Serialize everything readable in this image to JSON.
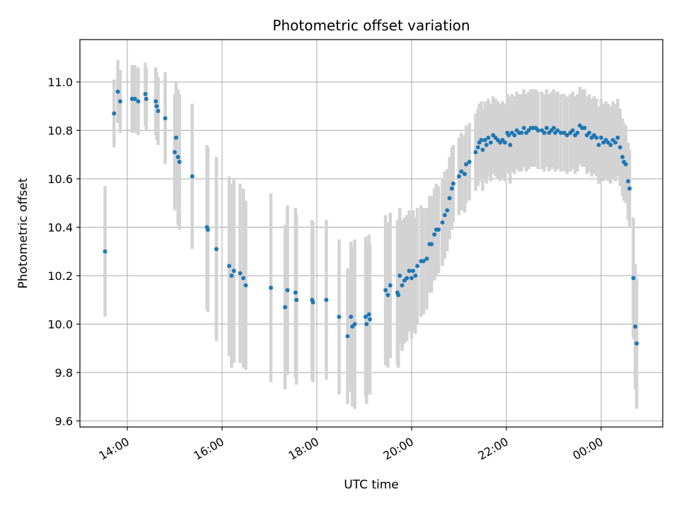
{
  "chart_data": {
    "type": "scatter",
    "title": "Photometric offset variation",
    "xlabel": "UTC time",
    "ylabel": "Photometric offset",
    "x_tick_labels": [
      "14:00",
      "16:00",
      "18:00",
      "20:00",
      "22:00",
      "00:00"
    ],
    "x_tick_hours": [
      14,
      16,
      18,
      20,
      22,
      24
    ],
    "xlim_hours": [
      13.0,
      25.3
    ],
    "ylim": [
      9.575,
      11.175
    ],
    "y_ticks": [
      9.6,
      9.8,
      10.0,
      10.2,
      10.4,
      10.6,
      10.8,
      11.0
    ],
    "y_tick_labels": [
      "9.6",
      "9.8",
      "10.0",
      "10.2",
      "10.4",
      "10.6",
      "10.8",
      "11.0"
    ],
    "grid": true,
    "colors": {
      "points": "#1f77b4",
      "error_bars": "#d3d3d3",
      "grid": "#b0b0b0"
    },
    "series": [
      {
        "points": [
          [
            13.53,
            10.3,
            0.27
          ],
          [
            13.72,
            10.87,
            0.14
          ],
          [
            13.8,
            10.96,
            0.13
          ],
          [
            13.85,
            10.92,
            0.13
          ],
          [
            14.1,
            10.93,
            0.14
          ],
          [
            14.16,
            10.93,
            0.14
          ],
          [
            14.23,
            10.92,
            0.14
          ],
          [
            14.38,
            10.95,
            0.13
          ],
          [
            14.4,
            10.93,
            0.13
          ],
          [
            14.6,
            10.92,
            0.14
          ],
          [
            14.62,
            10.9,
            0.14
          ],
          [
            14.65,
            10.88,
            0.14
          ],
          [
            14.8,
            10.85,
            0.19
          ],
          [
            15.0,
            10.71,
            0.24
          ],
          [
            15.03,
            10.77,
            0.23
          ],
          [
            15.07,
            10.69,
            0.28
          ],
          [
            15.1,
            10.67,
            0.28
          ],
          [
            15.37,
            10.61,
            0.3
          ],
          [
            15.68,
            10.4,
            0.34
          ],
          [
            15.7,
            10.39,
            0.34
          ],
          [
            15.88,
            10.31,
            0.38
          ],
          [
            16.15,
            10.24,
            0.37
          ],
          [
            16.2,
            10.2,
            0.38
          ],
          [
            16.25,
            10.22,
            0.38
          ],
          [
            16.38,
            10.21,
            0.37
          ],
          [
            16.45,
            10.19,
            0.37
          ],
          [
            16.5,
            10.16,
            0.35
          ],
          [
            17.03,
            10.15,
            0.39
          ],
          [
            17.33,
            10.07,
            0.34
          ],
          [
            17.38,
            10.14,
            0.35
          ],
          [
            17.55,
            10.13,
            0.35
          ],
          [
            17.57,
            10.1,
            0.35
          ],
          [
            17.9,
            10.1,
            0.33
          ],
          [
            17.92,
            10.09,
            0.33
          ],
          [
            18.2,
            10.1,
            0.33
          ],
          [
            18.47,
            10.03,
            0.32
          ],
          [
            18.65,
            9.95,
            0.28
          ],
          [
            18.72,
            10.03,
            0.31
          ],
          [
            18.75,
            9.99,
            0.33
          ],
          [
            18.8,
            10.0,
            0.35
          ],
          [
            19.03,
            10.03,
            0.33
          ],
          [
            19.05,
            10.0,
            0.33
          ],
          [
            19.1,
            10.04,
            0.33
          ],
          [
            19.12,
            10.02,
            0.31
          ],
          [
            19.45,
            10.14,
            0.31
          ],
          [
            19.5,
            10.12,
            0.3
          ],
          [
            19.55,
            10.16,
            0.3
          ],
          [
            19.7,
            10.13,
            0.3
          ],
          [
            19.72,
            10.12,
            0.3
          ],
          [
            19.75,
            10.2,
            0.28
          ],
          [
            19.8,
            10.16,
            0.27
          ],
          [
            19.85,
            10.18,
            0.26
          ],
          [
            19.9,
            10.19,
            0.26
          ],
          [
            19.95,
            10.22,
            0.25
          ],
          [
            20.0,
            10.19,
            0.25
          ],
          [
            20.03,
            10.22,
            0.25
          ],
          [
            20.08,
            10.2,
            0.24
          ],
          [
            20.12,
            10.24,
            0.24
          ],
          [
            20.2,
            10.26,
            0.23
          ],
          [
            20.25,
            10.26,
            0.22
          ],
          [
            20.32,
            10.27,
            0.21
          ],
          [
            20.38,
            10.33,
            0.2
          ],
          [
            20.42,
            10.33,
            0.2
          ],
          [
            20.48,
            10.37,
            0.19
          ],
          [
            20.52,
            10.39,
            0.19
          ],
          [
            20.57,
            10.39,
            0.18
          ],
          [
            20.65,
            10.42,
            0.18
          ],
          [
            20.7,
            10.45,
            0.18
          ],
          [
            20.75,
            10.47,
            0.17
          ],
          [
            20.8,
            10.52,
            0.17
          ],
          [
            20.85,
            10.56,
            0.17
          ],
          [
            20.88,
            10.58,
            0.16
          ],
          [
            21.0,
            10.61,
            0.16
          ],
          [
            21.05,
            10.63,
            0.16
          ],
          [
            21.12,
            10.62,
            0.16
          ],
          [
            21.15,
            10.66,
            0.16
          ],
          [
            21.22,
            10.67,
            0.16
          ],
          [
            21.35,
            10.71,
            0.16
          ],
          [
            21.4,
            10.73,
            0.16
          ],
          [
            21.43,
            10.75,
            0.16
          ],
          [
            21.47,
            10.76,
            0.16
          ],
          [
            21.5,
            10.72,
            0.17
          ],
          [
            21.55,
            10.76,
            0.16
          ],
          [
            21.58,
            10.74,
            0.16
          ],
          [
            21.62,
            10.77,
            0.16
          ],
          [
            21.67,
            10.75,
            0.16
          ],
          [
            21.72,
            10.78,
            0.16
          ],
          [
            21.77,
            10.77,
            0.16
          ],
          [
            21.82,
            10.76,
            0.16
          ],
          [
            21.87,
            10.75,
            0.16
          ],
          [
            21.92,
            10.76,
            0.16
          ],
          [
            21.97,
            10.75,
            0.16
          ],
          [
            22.02,
            10.79,
            0.16
          ],
          [
            22.05,
            10.78,
            0.16
          ],
          [
            22.08,
            10.74,
            0.16
          ],
          [
            22.12,
            10.79,
            0.16
          ],
          [
            22.17,
            10.78,
            0.16
          ],
          [
            22.22,
            10.8,
            0.16
          ],
          [
            22.27,
            10.79,
            0.16
          ],
          [
            22.32,
            10.79,
            0.16
          ],
          [
            22.37,
            10.81,
            0.16
          ],
          [
            22.42,
            10.79,
            0.16
          ],
          [
            22.47,
            10.8,
            0.16
          ],
          [
            22.52,
            10.81,
            0.16
          ],
          [
            22.57,
            10.81,
            0.16
          ],
          [
            22.62,
            10.81,
            0.16
          ],
          [
            22.67,
            10.8,
            0.16
          ],
          [
            22.75,
            10.8,
            0.16
          ],
          [
            22.8,
            10.79,
            0.16
          ],
          [
            22.85,
            10.81,
            0.16
          ],
          [
            22.9,
            10.79,
            0.16
          ],
          [
            22.95,
            10.8,
            0.16
          ],
          [
            23.0,
            10.81,
            0.16
          ],
          [
            23.03,
            10.79,
            0.16
          ],
          [
            23.08,
            10.8,
            0.16
          ],
          [
            23.15,
            10.79,
            0.16
          ],
          [
            23.22,
            10.79,
            0.16
          ],
          [
            23.28,
            10.78,
            0.16
          ],
          [
            23.35,
            10.79,
            0.16
          ],
          [
            23.4,
            10.8,
            0.16
          ],
          [
            23.45,
            10.78,
            0.16
          ],
          [
            23.5,
            10.79,
            0.16
          ],
          [
            23.55,
            10.82,
            0.16
          ],
          [
            23.6,
            10.81,
            0.16
          ],
          [
            23.65,
            10.81,
            0.16
          ],
          [
            23.7,
            10.78,
            0.16
          ],
          [
            23.75,
            10.79,
            0.16
          ],
          [
            23.8,
            10.77,
            0.16
          ],
          [
            23.85,
            10.78,
            0.16
          ],
          [
            23.9,
            10.77,
            0.16
          ],
          [
            23.95,
            10.74,
            0.16
          ],
          [
            24.0,
            10.77,
            0.16
          ],
          [
            24.05,
            10.75,
            0.16
          ],
          [
            24.1,
            10.76,
            0.16
          ],
          [
            24.15,
            10.75,
            0.16
          ],
          [
            24.2,
            10.74,
            0.16
          ],
          [
            24.25,
            10.76,
            0.16
          ],
          [
            24.3,
            10.75,
            0.16
          ],
          [
            24.35,
            10.77,
            0.16
          ],
          [
            24.4,
            10.73,
            0.16
          ],
          [
            24.45,
            10.69,
            0.16
          ],
          [
            24.48,
            10.67,
            0.16
          ],
          [
            24.52,
            10.66,
            0.16
          ],
          [
            24.57,
            10.59,
            0.16
          ],
          [
            24.6,
            10.56,
            0.16
          ],
          [
            24.68,
            10.19,
            0.25
          ],
          [
            24.72,
            9.99,
            0.26
          ],
          [
            24.75,
            9.92,
            0.27
          ]
        ]
      }
    ]
  }
}
